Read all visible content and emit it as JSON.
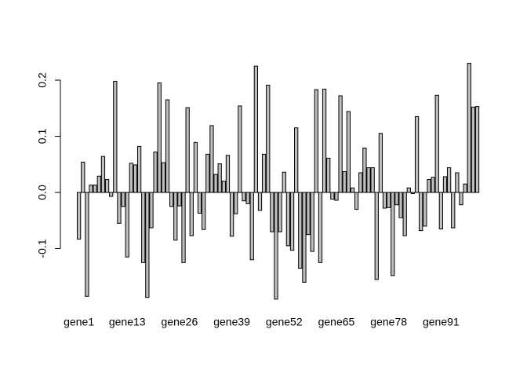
{
  "chart_data": {
    "type": "bar",
    "categories": [
      "gene1",
      null,
      null,
      null,
      null,
      null,
      null,
      null,
      null,
      null,
      null,
      null,
      "gene13",
      null,
      null,
      null,
      null,
      null,
      null,
      null,
      null,
      null,
      null,
      null,
      null,
      "gene26",
      null,
      null,
      null,
      null,
      null,
      null,
      null,
      null,
      null,
      null,
      null,
      null,
      "gene39",
      null,
      null,
      null,
      null,
      null,
      null,
      null,
      null,
      null,
      null,
      null,
      null,
      "gene52",
      null,
      null,
      null,
      null,
      null,
      null,
      null,
      null,
      null,
      null,
      null,
      null,
      "gene65",
      null,
      null,
      null,
      null,
      null,
      null,
      null,
      null,
      null,
      null,
      null,
      null,
      "gene78",
      null,
      null,
      null,
      null,
      null,
      null,
      null,
      null,
      null,
      null,
      null,
      null,
      "gene91",
      null,
      null,
      null,
      null,
      null,
      null,
      null,
      null,
      null
    ],
    "values": [
      -0.083,
      0.054,
      -0.185,
      0.013,
      0.013,
      0.029,
      0.064,
      0.023,
      -0.007,
      0.198,
      -0.055,
      -0.025,
      -0.115,
      0.052,
      0.049,
      0.082,
      -0.125,
      -0.187,
      -0.063,
      0.072,
      0.195,
      0.053,
      0.165,
      -0.025,
      -0.085,
      -0.024,
      -0.125,
      0.151,
      -0.077,
      0.089,
      -0.037,
      -0.066,
      0.068,
      0.119,
      0.032,
      0.051,
      0.02,
      0.066,
      -0.078,
      -0.038,
      0.154,
      -0.015,
      -0.02,
      -0.12,
      0.225,
      -0.032,
      0.068,
      0.191,
      -0.07,
      -0.19,
      -0.07,
      0.036,
      -0.095,
      -0.103,
      0.115,
      -0.135,
      -0.16,
      -0.075,
      -0.105,
      0.183,
      -0.125,
      0.184,
      0.061,
      -0.012,
      -0.014,
      0.172,
      0.037,
      0.144,
      0.008,
      -0.03,
      0.035,
      0.079,
      0.044,
      0.044,
      -0.155,
      0.105,
      -0.028,
      -0.027,
      -0.148,
      -0.022,
      -0.045,
      -0.077,
      0.008,
      -0.002,
      0.135,
      -0.068,
      -0.06,
      0.023,
      0.027,
      0.173,
      -0.065,
      0.028,
      0.044,
      -0.063,
      0.035,
      -0.022,
      0.015,
      0.23,
      0.152,
      0.153
    ],
    "color": "#bebebe",
    "ylim": [
      -0.2,
      0.24
    ],
    "yticks": [
      -0.1,
      {
        "value": 0,
        "label": "0.0"
      },
      0.1,
      0.2
    ]
  }
}
